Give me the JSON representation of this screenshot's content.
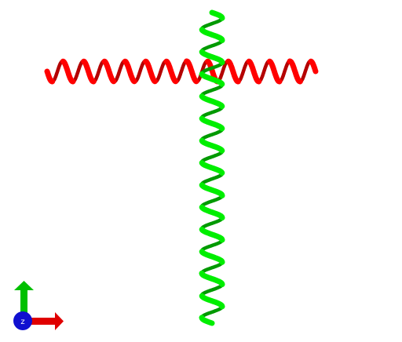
{
  "viewer": {
    "background_color": "#ffffff",
    "chains": [
      {
        "id": "A",
        "structure": "alpha-helix",
        "orientation": "horizontal",
        "color": "#ff0000",
        "shade_color": "#b40000",
        "turns": 13
      },
      {
        "id": "B",
        "structure": "alpha-helix",
        "orientation": "vertical",
        "color": "#00ee00",
        "shade_color": "#009900",
        "turns": 14
      }
    ]
  },
  "axes": {
    "z_label": "z",
    "x_color": "#e00000",
    "y_color": "#00c000",
    "z_color": "#1010d0"
  }
}
